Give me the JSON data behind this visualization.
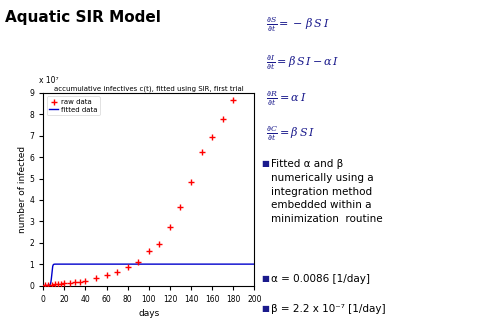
{
  "title": "Aquatic SIR Model",
  "plot_title": "accumulative infectives c(t), fitted using SIR, first trial",
  "xlabel": "days",
  "ylabel": "number of infected",
  "y_scale_label": "x 10⁷",
  "ylim": [
    0,
    9
  ],
  "xlim": [
    0,
    200
  ],
  "xticks": [
    0,
    20,
    40,
    60,
    80,
    100,
    120,
    140,
    160,
    180,
    200
  ],
  "yticks": [
    0,
    1,
    2,
    3,
    4,
    5,
    6,
    7,
    8,
    9
  ],
  "raw_data_x": [
    2,
    5,
    8,
    11,
    14,
    17,
    20,
    25,
    30,
    35,
    40,
    50,
    60,
    70,
    80,
    90,
    100,
    110,
    120,
    130,
    140,
    150,
    160,
    170,
    180
  ],
  "raw_data_y": [
    0.02,
    0.03,
    0.04,
    0.05,
    0.07,
    0.08,
    0.1,
    0.12,
    0.15,
    0.18,
    0.22,
    0.35,
    0.5,
    0.65,
    0.85,
    1.1,
    1.6,
    1.95,
    2.75,
    3.65,
    4.85,
    6.25,
    6.95,
    7.8,
    8.65
  ],
  "alpha": 0.0086,
  "beta": 2.2e-07,
  "S0": 10000000.0,
  "raw_color": "#ff0000",
  "fit_color": "#0000cc",
  "background_color": "#ffffff",
  "bullet_color": "#1a1a8c",
  "eq_color": "#1a1a8c"
}
